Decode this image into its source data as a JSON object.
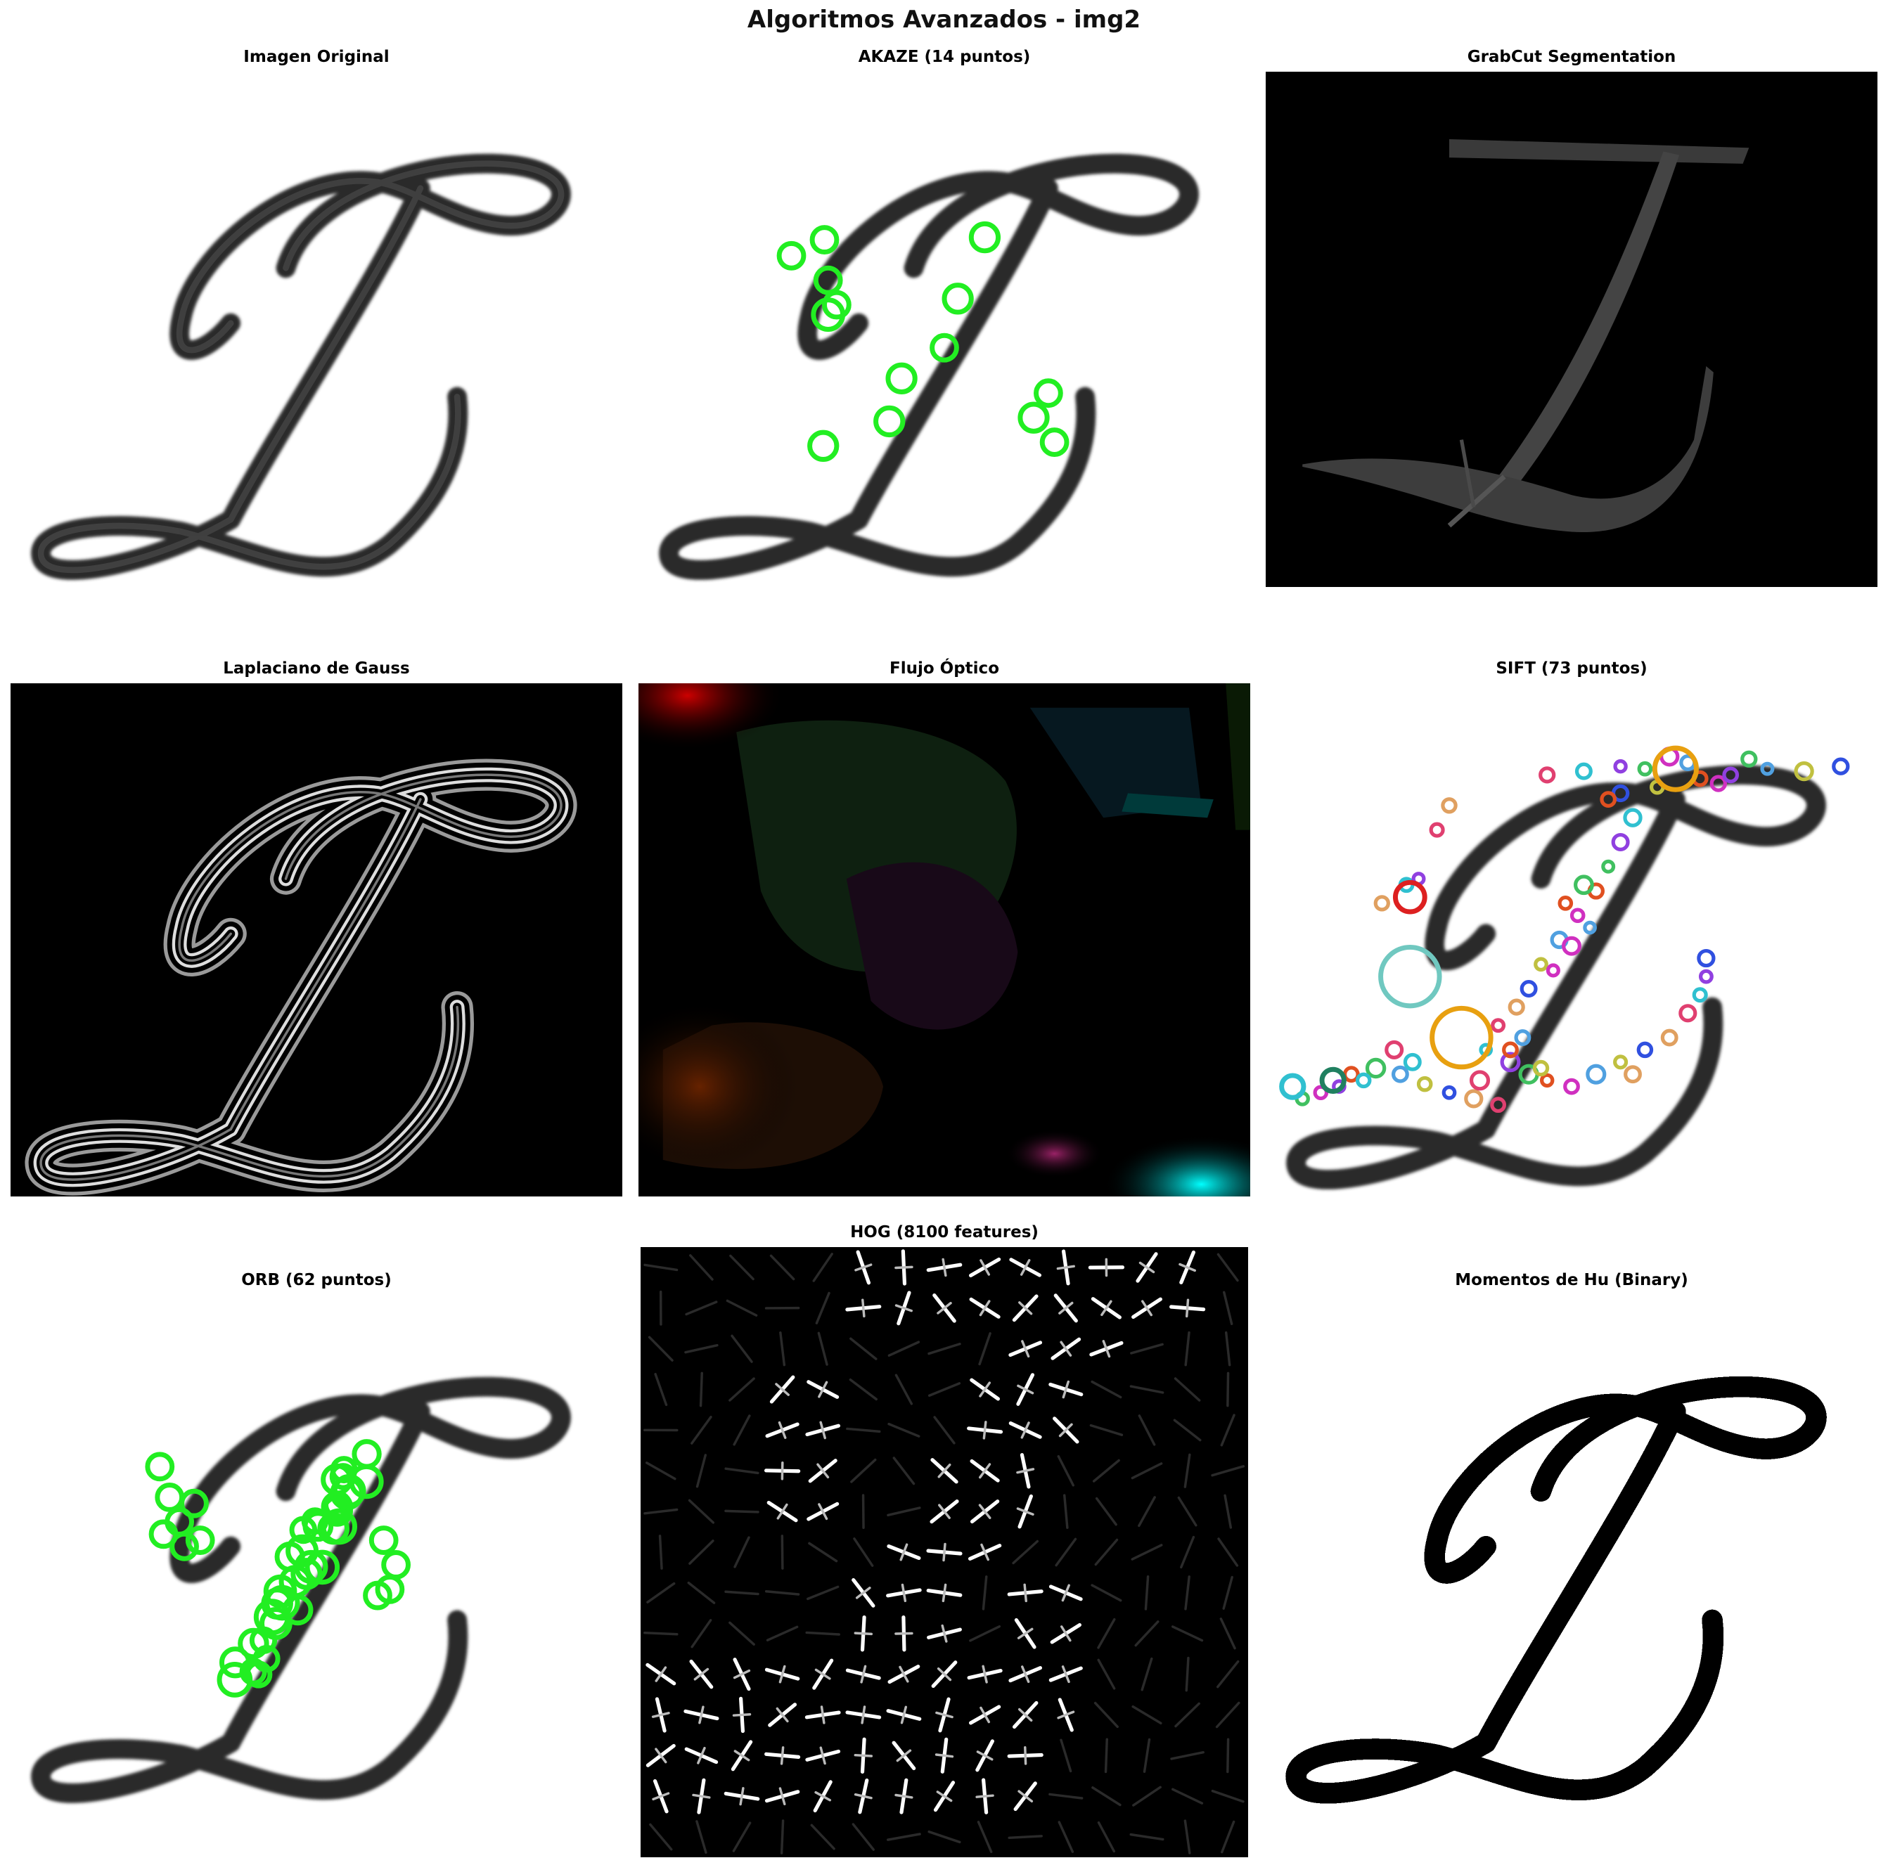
{
  "figure": {
    "title": "Algoritmos Avanzados - img2"
  },
  "panels": {
    "original": {
      "title": "Imagen Original"
    },
    "akaze": {
      "title": "AKAZE (14 puntos)"
    },
    "grabcut": {
      "title": "GrabCut Segmentation"
    },
    "log": {
      "title": "Laplaciano de Gauss"
    },
    "flow": {
      "title": "Flujo Óptico"
    },
    "sift": {
      "title": "SIFT (73 puntos)"
    },
    "orb": {
      "title": "ORB (62 puntos)"
    },
    "hog": {
      "title": "HOG (8100 features)"
    },
    "hu": {
      "title": "Momentos de Hu (Binary)"
    }
  },
  "colors": {
    "keypoint_green": "#22ee22",
    "stroke_dark": "#2a2a2a",
    "background_black": "#000000"
  }
}
